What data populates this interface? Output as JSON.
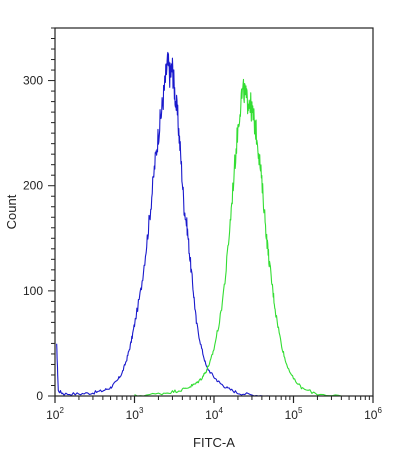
{
  "chart_data": {
    "type": "line",
    "title": "",
    "xlabel": "FITC-A",
    "ylabel": "Count",
    "xscale": "log",
    "xlim": [
      100,
      1000000
    ],
    "ylim": [
      0,
      350
    ],
    "x_ticks": [
      {
        "base": "10",
        "exp": "2",
        "value": 100
      },
      {
        "base": "10",
        "exp": "3",
        "value": 1000
      },
      {
        "base": "10",
        "exp": "4",
        "value": 10000
      },
      {
        "base": "10",
        "exp": "5",
        "value": 100000
      },
      {
        "base": "10",
        "exp": "6",
        "value": 1000000
      }
    ],
    "y_ticks": [
      {
        "label": "0",
        "value": 0
      },
      {
        "label": "100",
        "value": 100
      },
      {
        "label": "200",
        "value": 200
      },
      {
        "label": "300",
        "value": 300
      }
    ],
    "grid": false,
    "legend": "none",
    "series": [
      {
        "color": "#1a1acc",
        "points": [
          [
            105,
            48
          ],
          [
            110,
            5
          ],
          [
            130,
            2
          ],
          [
            200,
            2
          ],
          [
            300,
            3
          ],
          [
            400,
            5
          ],
          [
            500,
            8
          ],
          [
            600,
            14
          ],
          [
            700,
            22
          ],
          [
            800,
            35
          ],
          [
            900,
            50
          ],
          [
            1000,
            68
          ],
          [
            1200,
            100
          ],
          [
            1400,
            140
          ],
          [
            1600,
            180
          ],
          [
            1800,
            220
          ],
          [
            2000,
            250
          ],
          [
            2200,
            272
          ],
          [
            2400,
            295
          ],
          [
            2600,
            318
          ],
          [
            2800,
            305
          ],
          [
            3000,
            312
          ],
          [
            3200,
            290
          ],
          [
            3500,
            265
          ],
          [
            3800,
            230
          ],
          [
            4200,
            180
          ],
          [
            4600,
            160
          ],
          [
            5000,
            130
          ],
          [
            5500,
            100
          ],
          [
            6000,
            70
          ],
          [
            7000,
            45
          ],
          [
            8000,
            28
          ],
          [
            10000,
            18
          ],
          [
            12000,
            12
          ],
          [
            15000,
            7
          ],
          [
            20000,
            3
          ],
          [
            30000,
            1
          ],
          [
            50000,
            0
          ]
        ]
      },
      {
        "color": "#33dd33",
        "points": [
          [
            1000,
            0
          ],
          [
            2000,
            2
          ],
          [
            3000,
            4
          ],
          [
            4000,
            6
          ],
          [
            5000,
            9
          ],
          [
            6000,
            12
          ],
          [
            7000,
            17
          ],
          [
            8000,
            24
          ],
          [
            9000,
            33
          ],
          [
            10000,
            45
          ],
          [
            12000,
            75
          ],
          [
            14000,
            115
          ],
          [
            16000,
            165
          ],
          [
            18000,
            215
          ],
          [
            20000,
            255
          ],
          [
            22000,
            285
          ],
          [
            24000,
            290
          ],
          [
            26000,
            280
          ],
          [
            28000,
            282
          ],
          [
            30000,
            270
          ],
          [
            32000,
            262
          ],
          [
            35000,
            245
          ],
          [
            38000,
            220
          ],
          [
            42000,
            185
          ],
          [
            46000,
            150
          ],
          [
            50000,
            125
          ],
          [
            55000,
            100
          ],
          [
            60000,
            78
          ],
          [
            70000,
            50
          ],
          [
            80000,
            32
          ],
          [
            100000,
            16
          ],
          [
            130000,
            7
          ],
          [
            200000,
            2
          ],
          [
            400000,
            0
          ]
        ]
      }
    ]
  }
}
